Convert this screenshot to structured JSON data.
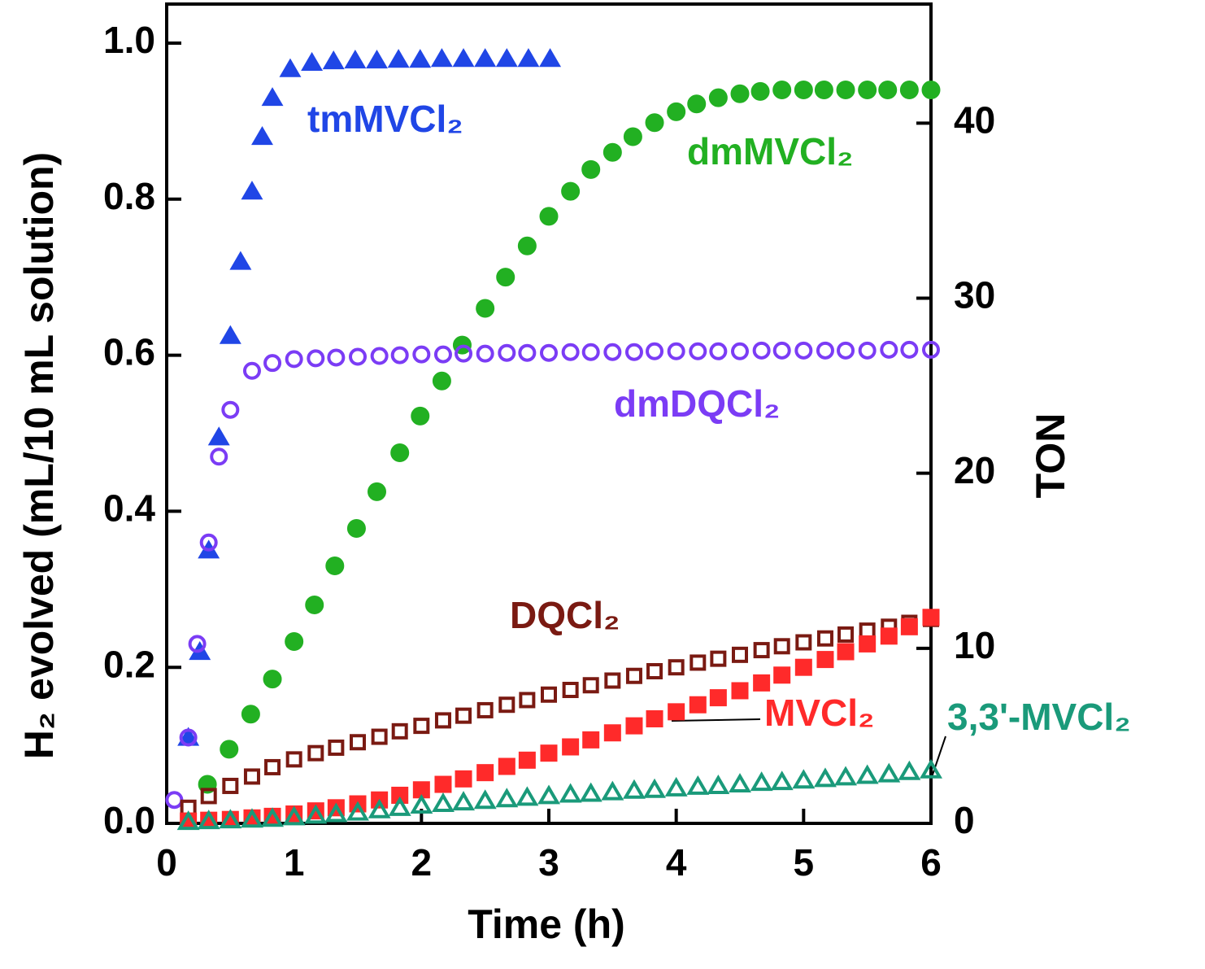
{
  "chart_data": {
    "type": "scatter",
    "x_label": "Time (h)",
    "y_label": "H₂ evolved (mL/10 mL solution)",
    "y2_label": "TON",
    "xlim": [
      0,
      6
    ],
    "xticks": [
      0,
      1,
      2,
      3,
      4,
      5,
      6
    ],
    "ylim": [
      0,
      1.05
    ],
    "yticks": [
      {
        "value": 0,
        "label": "0.0"
      },
      0.2,
      0.4,
      0.6,
      0.8,
      {
        "value": 1,
        "label": "1.0"
      }
    ],
    "y2lim": [
      0,
      46.8
    ],
    "y2ticks": [
      0,
      10,
      20,
      30,
      40
    ],
    "series": [
      {
        "name": "tmMVCl₂",
        "color": "#2046e6",
        "marker": "triangle",
        "filled": true,
        "x": [
          0.17,
          0.26,
          0.33,
          0.41,
          0.5,
          0.58,
          0.67,
          0.75,
          0.83,
          0.97,
          1.14,
          1.31,
          1.48,
          1.65,
          1.82,
          1.99,
          2.16,
          2.33,
          2.5,
          2.67,
          2.84,
          3.01
        ],
        "values": [
          0.11,
          0.22,
          0.35,
          0.495,
          0.625,
          0.72,
          0.81,
          0.88,
          0.93,
          0.967,
          0.975,
          0.977,
          0.978,
          0.978,
          0.979,
          0.979,
          0.98,
          0.98,
          0.98,
          0.98,
          0.98,
          0.98
        ]
      },
      {
        "name": "dmMVCl₂",
        "color": "#22b022",
        "marker": "circle",
        "filled": true,
        "x": [
          0.32,
          0.49,
          0.66,
          0.83,
          1.0,
          1.16,
          1.32,
          1.49,
          1.65,
          1.83,
          1.99,
          2.16,
          2.32,
          2.5,
          2.66,
          2.83,
          3.0,
          3.17,
          3.33,
          3.5,
          3.66,
          3.83,
          4.0,
          4.16,
          4.33,
          4.5,
          4.66,
          4.83,
          5.0,
          5.16,
          5.33,
          5.5,
          5.66,
          5.83,
          6.0
        ],
        "values": [
          0.05,
          0.095,
          0.14,
          0.185,
          0.233,
          0.28,
          0.33,
          0.378,
          0.425,
          0.475,
          0.522,
          0.567,
          0.613,
          0.66,
          0.7,
          0.74,
          0.778,
          0.81,
          0.838,
          0.86,
          0.88,
          0.898,
          0.912,
          0.922,
          0.93,
          0.935,
          0.938,
          0.94,
          0.94,
          0.94,
          0.94,
          0.94,
          0.94,
          0.94,
          0.94
        ]
      },
      {
        "name": "dmDQCl₂",
        "color": "#7b3cf5",
        "marker": "circle",
        "filled": false,
        "x": [
          0.06,
          0.17,
          0.24,
          0.33,
          0.41,
          0.5,
          0.67,
          0.83,
          1.0,
          1.17,
          1.33,
          1.5,
          1.67,
          1.83,
          2.0,
          2.17,
          2.33,
          2.5,
          2.67,
          2.83,
          3.0,
          3.17,
          3.33,
          3.5,
          3.67,
          3.83,
          4.0,
          4.17,
          4.33,
          4.5,
          4.67,
          4.83,
          5.0,
          5.17,
          5.33,
          5.5,
          5.67,
          5.83,
          6.0
        ],
        "values": [
          0.03,
          0.11,
          0.23,
          0.36,
          0.47,
          0.53,
          0.58,
          0.59,
          0.595,
          0.596,
          0.597,
          0.598,
          0.599,
          0.6,
          0.601,
          0.601,
          0.602,
          0.602,
          0.603,
          0.603,
          0.603,
          0.604,
          0.604,
          0.604,
          0.604,
          0.605,
          0.605,
          0.605,
          0.605,
          0.605,
          0.606,
          0.606,
          0.606,
          0.606,
          0.606,
          0.606,
          0.607,
          0.607,
          0.607
        ]
      },
      {
        "name": "DQCl₂",
        "color": "#7a1a12",
        "marker": "square",
        "filled": false,
        "x": [
          0.17,
          0.33,
          0.5,
          0.67,
          0.83,
          1.0,
          1.17,
          1.33,
          1.5,
          1.67,
          1.83,
          2.0,
          2.17,
          2.33,
          2.5,
          2.67,
          2.83,
          3.0,
          3.17,
          3.33,
          3.5,
          3.67,
          3.83,
          4.0,
          4.17,
          4.33,
          4.5,
          4.67,
          4.83,
          5.0,
          5.17,
          5.33,
          5.5,
          5.67,
          5.83,
          6.0
        ],
        "values": [
          0.02,
          0.035,
          0.048,
          0.06,
          0.072,
          0.082,
          0.09,
          0.097,
          0.104,
          0.111,
          0.118,
          0.125,
          0.132,
          0.138,
          0.145,
          0.152,
          0.158,
          0.165,
          0.171,
          0.177,
          0.183,
          0.189,
          0.195,
          0.2,
          0.206,
          0.211,
          0.216,
          0.222,
          0.227,
          0.232,
          0.237,
          0.242,
          0.247,
          0.252,
          0.257,
          0.262
        ]
      },
      {
        "name": "MVCl₂",
        "color": "#ff2a2a",
        "marker": "square",
        "filled": true,
        "x": [
          0.17,
          0.33,
          0.5,
          0.67,
          0.83,
          1.0,
          1.17,
          1.33,
          1.5,
          1.67,
          1.83,
          2.0,
          2.17,
          2.33,
          2.5,
          2.67,
          2.83,
          3.0,
          3.17,
          3.33,
          3.5,
          3.67,
          3.83,
          4.0,
          4.17,
          4.33,
          4.5,
          4.67,
          4.83,
          5.0,
          5.17,
          5.33,
          5.5,
          5.67,
          5.83,
          6.0
        ],
        "values": [
          0.003,
          0.004,
          0.005,
          0.007,
          0.009,
          0.012,
          0.016,
          0.02,
          0.025,
          0.03,
          0.036,
          0.043,
          0.05,
          0.057,
          0.065,
          0.073,
          0.081,
          0.09,
          0.098,
          0.107,
          0.116,
          0.125,
          0.134,
          0.143,
          0.152,
          0.161,
          0.17,
          0.18,
          0.19,
          0.2,
          0.21,
          0.22,
          0.23,
          0.24,
          0.252,
          0.264
        ]
      },
      {
        "name": "3,3'-MVCl₂",
        "color": "#1a9a7a",
        "marker": "triangle",
        "filled": false,
        "x": [
          0.17,
          0.33,
          0.5,
          0.67,
          0.83,
          1.0,
          1.17,
          1.33,
          1.5,
          1.67,
          1.83,
          2.0,
          2.17,
          2.33,
          2.5,
          2.67,
          2.83,
          3.0,
          3.17,
          3.33,
          3.5,
          3.67,
          3.83,
          4.0,
          4.17,
          4.33,
          4.5,
          4.67,
          4.83,
          5.0,
          5.17,
          5.33,
          5.5,
          5.67,
          5.83,
          6.0
        ],
        "values": [
          0.002,
          0.003,
          0.004,
          0.005,
          0.006,
          0.008,
          0.01,
          0.012,
          0.014,
          0.017,
          0.02,
          0.023,
          0.025,
          0.027,
          0.029,
          0.031,
          0.033,
          0.035,
          0.037,
          0.038,
          0.04,
          0.042,
          0.043,
          0.045,
          0.047,
          0.048,
          0.05,
          0.052,
          0.053,
          0.055,
          0.057,
          0.059,
          0.061,
          0.063,
          0.066,
          0.068
        ]
      }
    ]
  }
}
